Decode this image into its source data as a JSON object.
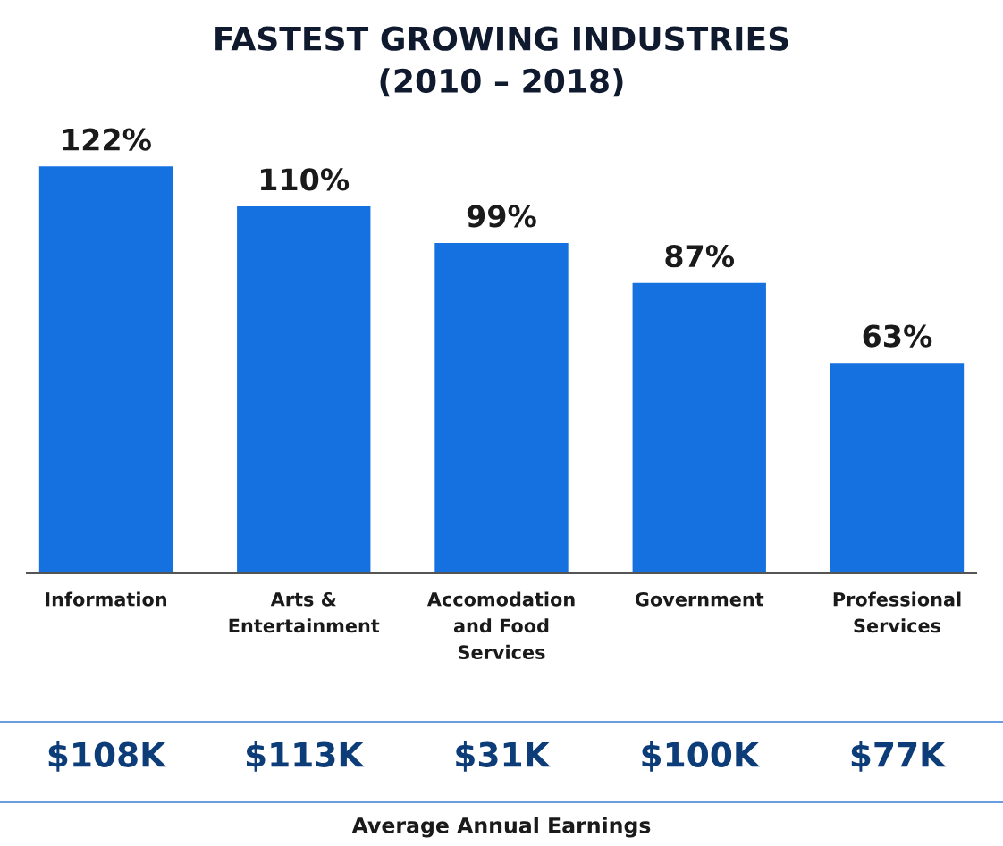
{
  "chart_data": {
    "type": "bar",
    "title": "FASTEST GROWING INDUSTRIES\n(2010 – 2018)",
    "categories": [
      "Information",
      "Arts &\nEntertainment",
      "Accomodation\nand Food\nServices",
      "Government",
      "Professional\nServices"
    ],
    "values": [
      122,
      110,
      99,
      87,
      63
    ],
    "color": "#1570e0",
    "value_labels": [
      "122%",
      "110%",
      "99%",
      "87%",
      "63%"
    ],
    "annotations": [
      "$108K",
      "$113K",
      "$31K",
      "$100K",
      "$77K",
      "Average Annual Earnings"
    ],
    "grid": false,
    "legend": false
  }
}
